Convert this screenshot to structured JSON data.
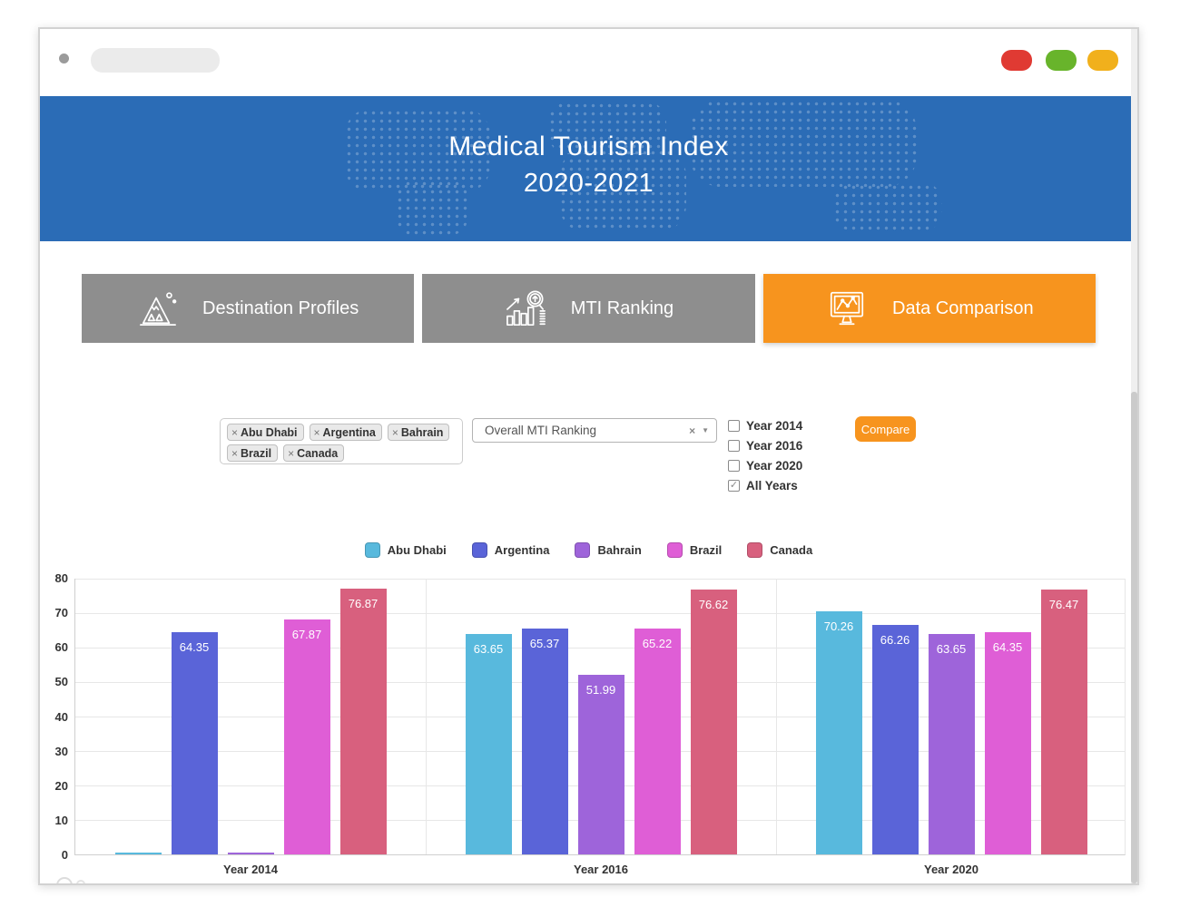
{
  "browser": {
    "traffic_lights": [
      {
        "name": "red",
        "color": "#e03a33"
      },
      {
        "name": "green",
        "color": "#68b42b"
      },
      {
        "name": "yellow",
        "color": "#f1b01c"
      }
    ]
  },
  "header": {
    "title_line1": "Medical Tourism Index",
    "title_line2": "2020-2021",
    "bg_color": "#2b6cb6"
  },
  "tabs": [
    {
      "label": "Destination Profiles",
      "icon": "mountain-icon",
      "active": false
    },
    {
      "label": "MTI Ranking",
      "icon": "ranking-search-icon",
      "active": false
    },
    {
      "label": "Data Comparison",
      "icon": "monitor-chart-icon",
      "active": true
    }
  ],
  "filters": {
    "destination_tags": [
      "Abu Dhabi",
      "Argentina",
      "Bahrain",
      "Brazil",
      "Canada"
    ],
    "metric_dropdown": {
      "value": "Overall MTI Ranking",
      "clear_glyph": "×",
      "caret_glyph": "▼"
    },
    "year_checkboxes": [
      {
        "label": "Year 2014",
        "checked": false
      },
      {
        "label": "Year 2016",
        "checked": false
      },
      {
        "label": "Year 2020",
        "checked": false
      },
      {
        "label": "All Years",
        "checked": true
      }
    ],
    "compare_label": "Compare"
  },
  "chart_data": {
    "type": "bar",
    "title": "",
    "categories": [
      "Year 2014",
      "Year 2016",
      "Year 2020"
    ],
    "series": [
      {
        "name": "Abu Dhabi",
        "color": "#58b9dd",
        "values": [
          0,
          63.65,
          70.26
        ]
      },
      {
        "name": "Argentina",
        "color": "#5a64d8",
        "values": [
          64.35,
          65.37,
          66.26
        ]
      },
      {
        "name": "Bahrain",
        "color": "#9e64da",
        "values": [
          0,
          51.99,
          63.65
        ]
      },
      {
        "name": "Brazil",
        "color": "#df5ed6",
        "values": [
          67.87,
          65.22,
          64.35
        ]
      },
      {
        "name": "Canada",
        "color": "#d8607e",
        "values": [
          76.87,
          76.62,
          76.47
        ]
      }
    ],
    "xlabel": "",
    "ylabel": "",
    "ylim": [
      0,
      80
    ],
    "ytick_step": 10,
    "grid": true,
    "legend_position": "top",
    "value_labels": true
  },
  "accent_colors": {
    "orange": "#f7941e",
    "tab_gray": "#8e8e8e",
    "header_blue": "#2b6cb6"
  }
}
